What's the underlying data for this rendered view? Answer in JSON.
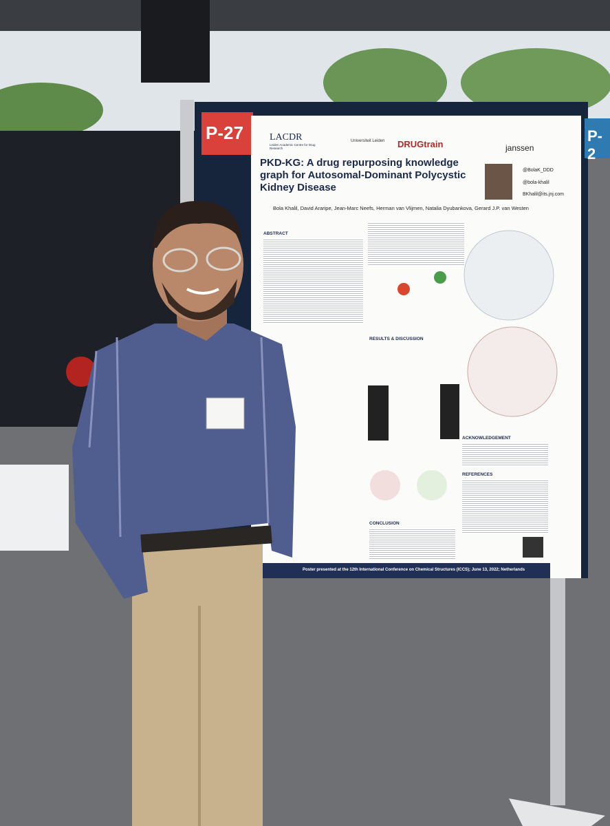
{
  "board": {
    "label_left": "P-27",
    "label_right": "P-2"
  },
  "poster": {
    "logos": [
      "LACDR",
      "Leiden Academic Centre for Drug Research",
      "Universiteit Leiden",
      "DRUGtrain",
      "janssen"
    ],
    "title": "PKD-KG: A drug repurposing knowledge graph for Autosomal-Dominant Polycystic Kidney Disease",
    "contacts": [
      "@BolaK_DDD",
      "@bola-khalil",
      "BKhalil@its.jnj.com"
    ],
    "authors": "Bola Khalil, David Araripe, Jean-Marc Neefs, Herman van Vlijmen, Natalia Dyubankova, Gerard J.P. van Westen",
    "sections": [
      "ABSTRACT",
      "RESULTS & DISCUSSION",
      "CONCLUSION",
      "ACKNOWLEDGEMENT",
      "REFERENCES"
    ],
    "footer": "Poster presented at the 12th International Conference on Chemical Structures (ICCS); June 13, 2022; Netherlands"
  }
}
